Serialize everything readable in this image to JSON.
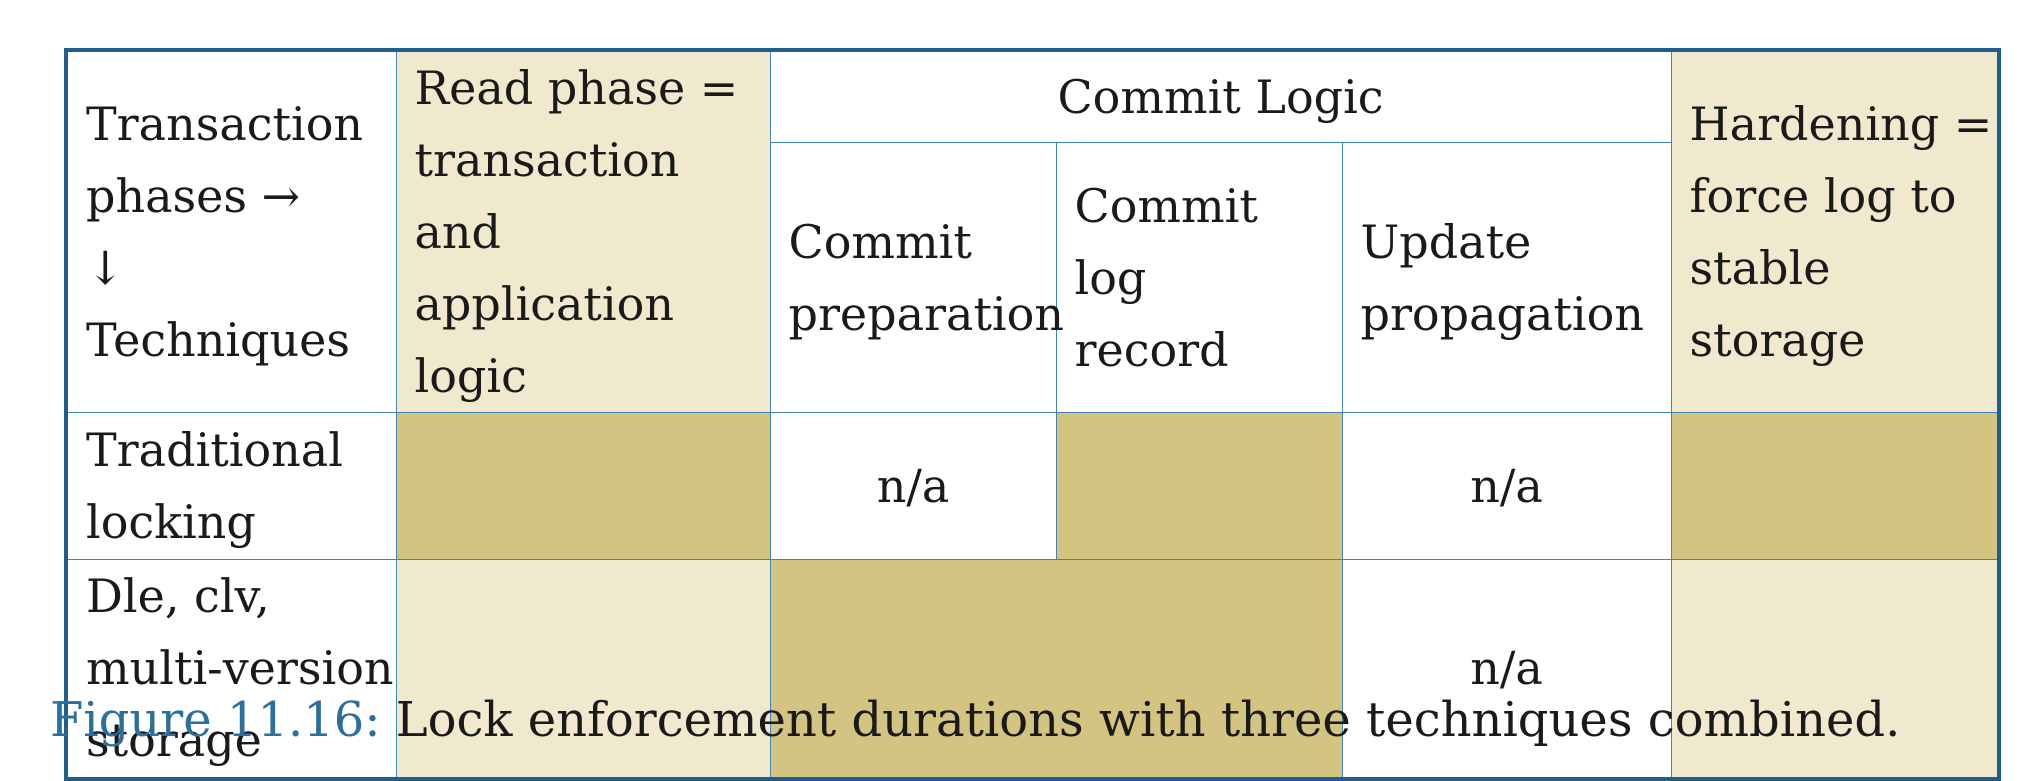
{
  "table": {
    "header": {
      "techniques": [
        "Transaction",
        "phases →",
        "↓ Techniques"
      ],
      "read_phase": [
        "Read phase =",
        "transaction and",
        "application logic"
      ],
      "commit_logic": "Commit Logic",
      "commit_preparation": [
        "Commit",
        "preparation"
      ],
      "commit_log_record": [
        "Commit log",
        "record"
      ],
      "update_propagation": [
        "Update",
        "propagation"
      ],
      "hardening": [
        "Hardening =",
        "force log to",
        "stable storage"
      ]
    },
    "rows": [
      {
        "technique": [
          "Traditional",
          "locking"
        ],
        "commit_preparation": "n/a",
        "update_propagation": "n/a"
      },
      {
        "technique": [
          "Dle, clv,",
          "multi-version",
          "storage"
        ],
        "update_propagation": "n/a"
      }
    ]
  },
  "caption": {
    "label": "Figure 11.16:",
    "text": "Lock enforcement durations with three techniques combined."
  },
  "colors": {
    "border": "#1f5f8b",
    "light_tan": "#f0e9cd",
    "dark_tan": "#d4c482",
    "caption_label": "#2b6f9e"
  }
}
